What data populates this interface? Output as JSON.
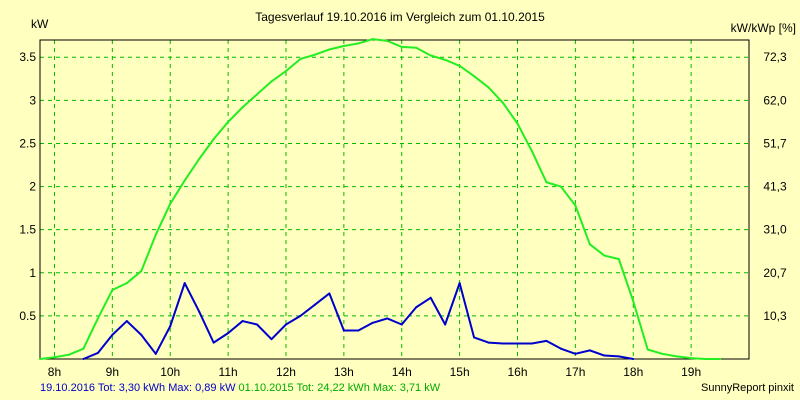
{
  "chart_data": {
    "type": "line",
    "title": "Tagesverlauf 19.10.2016 im Vergleich zum 01.10.2015",
    "ylabel_left": "kW",
    "ylabel_right": "kW/kWp [%]",
    "ylim": [
      0,
      3.7
    ],
    "yticks_left": [
      "0.5",
      "1",
      "1.5",
      "2",
      "2.5",
      "3",
      "3.5"
    ],
    "yticks_left_values": [
      0.5,
      1,
      1.5,
      2,
      2.5,
      3,
      3.5
    ],
    "yticks_right": [
      "10,3",
      "20,7",
      "31,0",
      "41,3",
      "51,7",
      "62,0",
      "72,3"
    ],
    "xlim": [
      7.75,
      20.0
    ],
    "xticks": [
      "8h",
      "9h",
      "10h",
      "11h",
      "12h",
      "13h",
      "14h",
      "15h",
      "16h",
      "17h",
      "18h",
      "19h"
    ],
    "xticks_values": [
      8,
      9,
      10,
      11,
      12,
      13,
      14,
      15,
      16,
      17,
      18,
      19
    ],
    "grid": true,
    "series": [
      {
        "name": "19.10.2016",
        "color": "#0000cc",
        "x": [
          8.5,
          8.75,
          9.0,
          9.25,
          9.5,
          9.75,
          10.0,
          10.25,
          10.5,
          10.75,
          11.0,
          11.25,
          11.5,
          11.75,
          12.0,
          12.25,
          12.5,
          12.75,
          13.0,
          13.25,
          13.5,
          13.75,
          14.0,
          14.25,
          14.5,
          14.75,
          15.0,
          15.25,
          15.5,
          15.75,
          16.0,
          16.25,
          16.5,
          16.75,
          17.0,
          17.25,
          17.5,
          17.75,
          18.0
        ],
        "y": [
          0.0,
          0.07,
          0.28,
          0.44,
          0.28,
          0.06,
          0.38,
          0.88,
          0.55,
          0.19,
          0.3,
          0.44,
          0.4,
          0.23,
          0.4,
          0.5,
          0.63,
          0.76,
          0.33,
          0.33,
          0.42,
          0.47,
          0.4,
          0.6,
          0.71,
          0.4,
          0.88,
          0.25,
          0.19,
          0.18,
          0.18,
          0.18,
          0.21,
          0.12,
          0.06,
          0.1,
          0.04,
          0.03,
          0.0
        ]
      },
      {
        "name": "01.10.2015",
        "color": "#22ee22",
        "x": [
          7.75,
          8.0,
          8.25,
          8.5,
          8.75,
          9.0,
          9.25,
          9.5,
          9.75,
          10.0,
          10.25,
          10.5,
          10.75,
          11.0,
          11.25,
          11.5,
          11.75,
          12.0,
          12.25,
          12.5,
          12.75,
          13.0,
          13.25,
          13.5,
          13.75,
          14.0,
          14.25,
          14.5,
          14.75,
          15.0,
          15.25,
          15.5,
          15.75,
          16.0,
          16.25,
          16.5,
          16.75,
          17.0,
          17.25,
          17.5,
          17.75,
          18.0,
          18.25,
          18.5,
          18.75,
          19.0,
          19.25,
          19.5
        ],
        "y": [
          0.0,
          0.02,
          0.05,
          0.12,
          0.47,
          0.8,
          0.88,
          1.02,
          1.44,
          1.8,
          2.07,
          2.32,
          2.55,
          2.75,
          2.92,
          3.07,
          3.22,
          3.34,
          3.48,
          3.53,
          3.59,
          3.63,
          3.66,
          3.71,
          3.69,
          3.62,
          3.61,
          3.52,
          3.47,
          3.4,
          3.28,
          3.15,
          2.97,
          2.73,
          2.41,
          2.05,
          2.0,
          1.78,
          1.33,
          1.2,
          1.16,
          0.67,
          0.11,
          0.06,
          0.03,
          0.01,
          0.0,
          0.0
        ]
      }
    ]
  },
  "footer": {
    "series1_text": "19.10.2016 Tot: 3,30 kWh Max: 0,89 kW",
    "series2_text": "01.10.2015 Tot: 24,22 kWh Max: 3,71 kW",
    "credit": "SunnyReport pinxit"
  }
}
